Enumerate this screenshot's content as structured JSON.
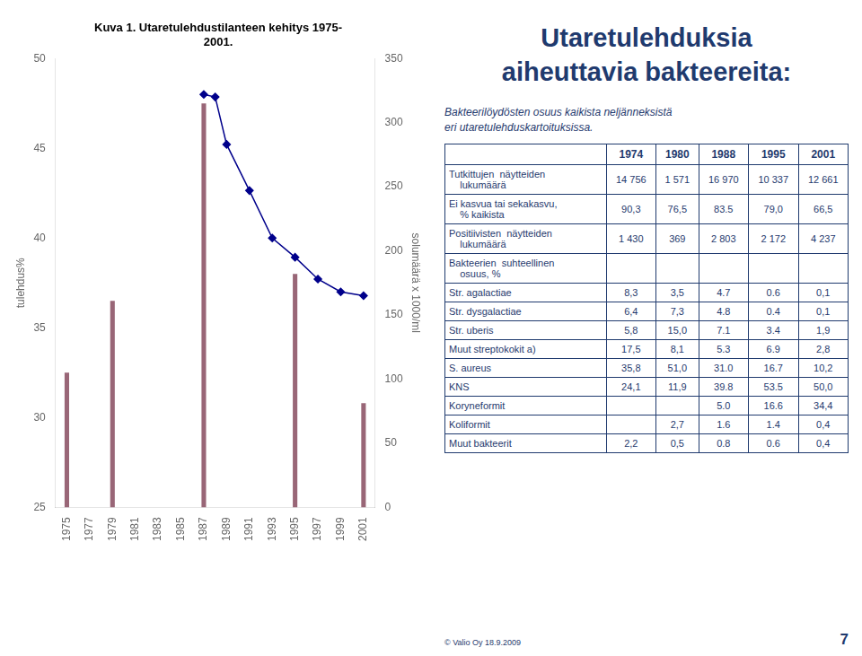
{
  "chart_data": {
    "type": "bar",
    "title": [
      "Kuva 1. Utaretulehdustilanteen kehitys 1975-",
      "2001."
    ],
    "series": [
      {
        "type": "bar",
        "color": "#996677",
        "x": [
          1975,
          1979,
          1987,
          1995,
          2001
        ],
        "values": [
          32.5,
          36.5,
          47.5,
          38.0,
          30.8
        ]
      },
      {
        "type": "line",
        "axis": "y2",
        "color": "#00008B",
        "marker": "diamond",
        "line_style": "solid",
        "x": [
          1987,
          1988,
          1989,
          1991,
          1993,
          1995,
          1997,
          1999,
          2001
        ],
        "values": [
          322,
          320,
          283,
          247,
          210,
          195,
          178,
          168,
          165
        ]
      }
    ],
    "xlim": [
      1974,
      2002
    ],
    "xticks": [
      1975,
      1977,
      1979,
      1981,
      1983,
      1985,
      1987,
      1989,
      1991,
      1993,
      1995,
      1997,
      1999,
      2001
    ],
    "ylim": [
      25,
      50
    ],
    "yticks": [
      25,
      30,
      35,
      40,
      45,
      50
    ],
    "y2lim": [
      0,
      350
    ],
    "y2ticks": [
      0,
      50,
      100,
      150,
      200,
      250,
      300,
      350
    ],
    "ylabel": "tulehdus%",
    "y2label": "solumäärä x 1000/ml",
    "grid": false
  },
  "table": {
    "title": [
      "Utaretulehduksia",
      "aiheuttavia bakteereita:"
    ],
    "subtitle": [
      "Bakteerilöydösten osuus kaikista neljänneksistä",
      "eri utaretulehduskartoituksissa."
    ],
    "color": "#1F3A6E",
    "columns": [
      null,
      "1974",
      "1980",
      "1988",
      "1995",
      "2001"
    ],
    "rows": [
      [
        "Tutkittujen  näytteiden\n    lukumäärä",
        "14 756",
        "1 571",
        "16 970",
        "10 337",
        "12 661"
      ],
      [
        "Ei kasvua tai sekakasvu,\n    % kaikista",
        "90,3",
        "76,5",
        "83.5",
        "79,0",
        "66,5"
      ],
      [
        "Positiivisten  näytteiden\n    lukumäärä",
        "1 430",
        "369",
        "2 803",
        "2 172",
        "4 237"
      ],
      [
        "Bakteerien  suhteellinen\n    osuus, %",
        null,
        null,
        null,
        null,
        null
      ],
      [
        "Str. agalactiae",
        "8,3",
        "3,5",
        "4.7",
        "0.6",
        "0,1"
      ],
      [
        "Str. dysgalactiae",
        "6,4",
        "7,3",
        "4.8",
        "0.4",
        "0,1"
      ],
      [
        "Str. uberis",
        "5,8",
        "15,0",
        "7.1",
        "3.4",
        "1,9"
      ],
      [
        "Muut streptokokit a)",
        "17,5",
        "8,1",
        "5.3",
        "6.9",
        "2,8"
      ],
      [
        "S. aureus",
        "35,8",
        "51,0",
        "31.0",
        "16.7",
        "10,2"
      ],
      [
        "KNS",
        "24,1",
        "11,9",
        "39.8",
        "53.5",
        "50,0"
      ],
      [
        "Koryneformit",
        null,
        null,
        "5.0",
        "16.6",
        "34,4"
      ],
      [
        "Koliformit",
        null,
        "2,7",
        "1.6",
        "1.4",
        "0,4"
      ],
      [
        "Muut bakteerit",
        "2,2",
        "0,5",
        "0.8",
        "0.6",
        "0,4"
      ]
    ]
  },
  "annotations": [
    "© Valio Oy 18.9.2009",
    "7"
  ]
}
